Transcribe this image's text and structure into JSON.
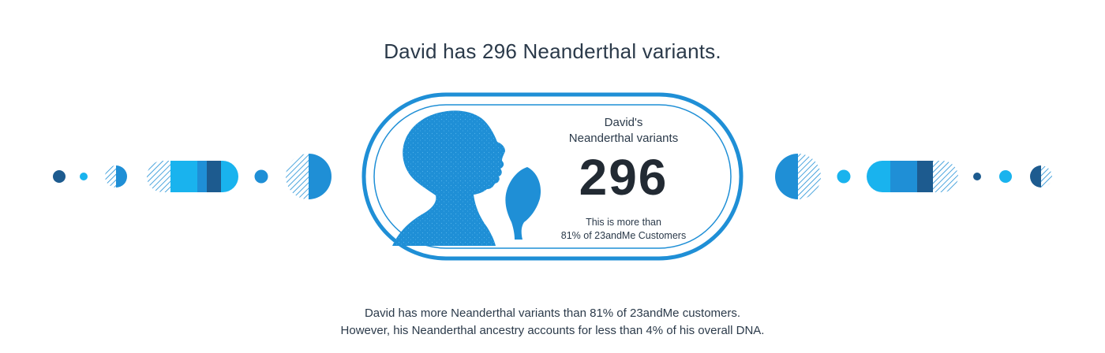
{
  "headline": "David has 296 Neanderthal variants.",
  "card": {
    "label_line1": "David's",
    "label_line2": "Neanderthal variants",
    "count": "296",
    "sub_line1": "This is more than",
    "sub_line2": "81% of 23andMe Customers"
  },
  "footer": {
    "line1": "David has more Neanderthal variants than 81% of 23andMe customers.",
    "line2": "However, his Neanderthal ancestry accounts for less than 4% of his overall DNA."
  },
  "colors": {
    "dark_blue": "#1d5b8f",
    "medium_blue": "#1f8fd6",
    "light_blue": "#19b3ee",
    "card_blue": "#1f8fd6",
    "text": "#2b3a4a"
  },
  "icons": {
    "silhouette": "neanderthal-profile-icon",
    "tool": "stone-hand-axe-icon"
  }
}
